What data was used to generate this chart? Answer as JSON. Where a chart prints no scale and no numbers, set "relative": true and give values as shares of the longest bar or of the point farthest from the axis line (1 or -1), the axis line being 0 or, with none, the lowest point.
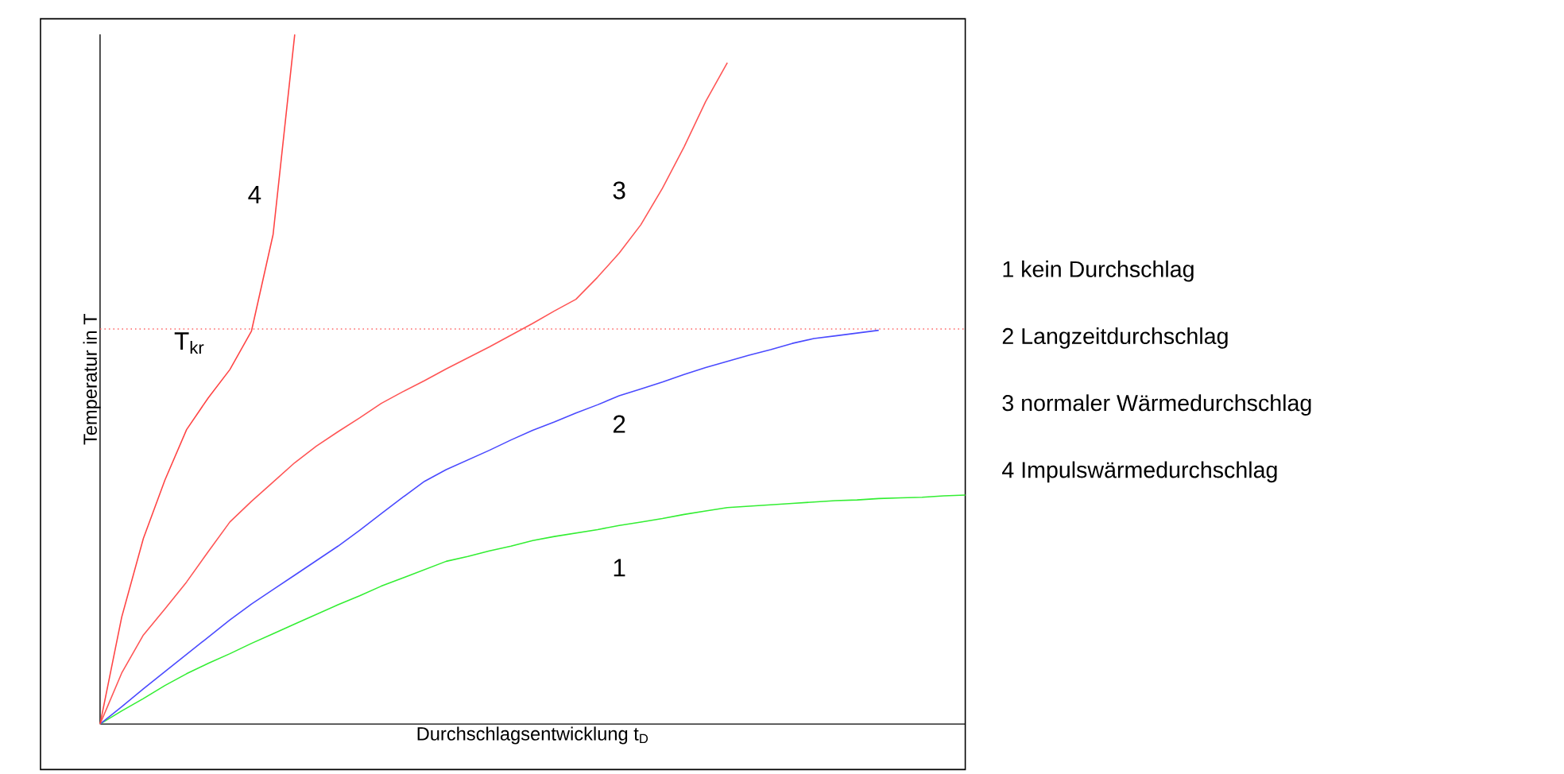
{
  "chart_data": {
    "type": "line",
    "relative": true,
    "xlabel": "Durchschlagsentwicklung t$_{D}$",
    "ylabel": "Temperatur in T",
    "marker": "none",
    "categories": [
      null,
      null,
      null,
      null,
      null,
      null,
      null,
      null,
      null,
      null,
      null,
      null,
      null,
      null,
      null,
      null,
      null,
      null,
      null,
      null,
      null,
      null,
      null,
      null,
      null,
      null,
      null,
      null,
      null,
      null,
      null,
      null,
      null,
      null,
      null,
      null,
      null,
      null,
      null,
      null,
      null
    ],
    "series": [
      {
        "name": "1",
        "color": "#33ee33",
        "values": [
          0,
          0.019,
          0.037,
          0.056,
          0.073,
          0.088,
          0.102,
          0.117,
          0.131,
          0.145,
          0.159,
          0.173,
          0.186,
          0.2,
          0.212,
          0.224,
          0.236,
          0.243,
          0.251,
          0.258,
          0.266,
          0.272,
          0.277,
          0.282,
          0.288,
          0.293,
          0.298,
          0.304,
          0.309,
          0.314,
          0.316,
          0.318,
          0.32,
          0.322,
          0.324,
          0.325,
          0.327,
          0.328,
          0.329,
          0.331,
          0.332
        ]
      },
      {
        "name": "2",
        "color": "#4a4aff",
        "values": [
          0,
          0.025,
          0.051,
          0.076,
          0.101,
          0.126,
          0.151,
          0.174,
          0.195,
          0.216,
          0.237,
          0.258,
          0.281,
          0.305,
          0.329,
          0.352,
          0.369,
          0.383,
          0.397,
          0.412,
          0.426,
          0.438,
          0.451,
          0.463,
          0.476,
          0.486,
          0.496,
          0.507,
          0.517,
          0.526,
          0.535,
          0.543,
          0.552,
          0.559,
          0.563,
          0.567,
          0.571,
          null,
          null,
          null,
          null
        ]
      },
      {
        "name": "3",
        "color": "#ff5555",
        "values": [
          0,
          0.074,
          0.129,
          0.167,
          0.206,
          0.25,
          0.293,
          0.323,
          0.351,
          0.379,
          0.403,
          0.424,
          0.444,
          0.465,
          0.482,
          0.498,
          0.515,
          0.531,
          0.547,
          0.564,
          0.581,
          0.599,
          0.616,
          0.648,
          0.683,
          0.724,
          0.777,
          0.837,
          0.903,
          0.959,
          null,
          null,
          null,
          null,
          null,
          null,
          null,
          null,
          null,
          null,
          null
        ]
      },
      {
        "name": "4",
        "color": "#ff4444",
        "values": [
          0,
          0.155,
          0.269,
          0.354,
          0.427,
          0.473,
          0.514,
          0.57,
          0.71,
          1.0,
          null,
          null,
          null,
          null,
          null,
          null,
          null,
          null,
          null,
          null,
          null,
          null,
          null,
          null,
          null,
          null,
          null,
          null,
          null,
          null,
          null,
          null,
          null,
          null,
          null,
          null,
          null,
          null,
          null,
          null,
          null
        ]
      }
    ],
    "ref_lines": [
      {
        "axis": "y",
        "value": 0.573,
        "label": "T$_{kr}$",
        "color": "#ff6666",
        "line_style": "dotted"
      }
    ],
    "annotations": [
      "1 kein Durchschlag",
      "2 Langzeitdurchschlag",
      "3 normaler Wärmedurchschlag",
      "4 Impulswärmedurchschlag"
    ]
  }
}
